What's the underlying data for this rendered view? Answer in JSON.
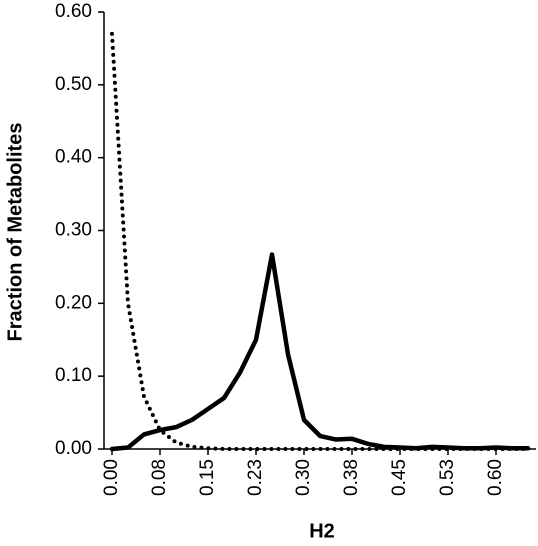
{
  "chart_data": {
    "type": "line",
    "x_label": "H2",
    "y_label": "Fraction of Metabolites",
    "x": [
      0,
      0.025,
      0.05,
      0.075,
      0.1,
      0.125,
      0.15,
      0.175,
      0.2,
      0.225,
      0.25,
      0.275,
      0.3,
      0.325,
      0.35,
      0.375,
      0.4,
      0.425,
      0.45,
      0.475,
      0.5,
      0.525,
      0.55,
      0.575,
      0.6,
      0.625,
      0.65
    ],
    "series": [
      {
        "color": "#000000",
        "line_style": "solid",
        "values": [
          0,
          0.002,
          0.02,
          0.026,
          0.03,
          0.04,
          0.055,
          0.07,
          0.105,
          0.15,
          0.267,
          0.13,
          0.04,
          0.018,
          0.013,
          0.014,
          0.007,
          0.003,
          0.002,
          0.001,
          0.003,
          0.002,
          0.001,
          0.001,
          0.002,
          0.001,
          0.001
        ]
      },
      {
        "color": "#000000",
        "line_style": "dotted",
        "values": [
          0.57,
          0.2,
          0.072,
          0.026,
          0.009,
          0.003,
          0.001,
          0,
          0,
          0,
          0,
          0,
          0,
          0,
          0,
          0,
          0,
          0,
          0,
          0,
          0,
          0,
          0,
          0,
          0,
          0,
          0
        ]
      }
    ],
    "xlim": [
      -0.0125,
      0.6625
    ],
    "xticks": [
      {
        "value": 0,
        "label": "0.00"
      },
      {
        "value": 0.075,
        "label": "0.08"
      },
      {
        "value": 0.15,
        "label": "0.15"
      },
      {
        "value": 0.225,
        "label": "0.23"
      },
      {
        "value": 0.3,
        "label": "0.30"
      },
      {
        "value": 0.375,
        "label": "0.38"
      },
      {
        "value": 0.45,
        "label": "0.45"
      },
      {
        "value": 0.525,
        "label": "0.53"
      },
      {
        "value": 0.6,
        "label": "0.60"
      }
    ],
    "ylim": [
      0,
      0.6
    ],
    "yticks": [
      {
        "value": 0,
        "label": "0.00"
      },
      {
        "value": 0.1,
        "label": "0.10"
      },
      {
        "value": 0.2,
        "label": "0.20"
      },
      {
        "value": 0.3,
        "label": "0.30"
      },
      {
        "value": 0.4,
        "label": "0.40"
      },
      {
        "value": 0.5,
        "label": "0.50"
      },
      {
        "value": 0.6,
        "label": "0.60"
      }
    ]
  }
}
